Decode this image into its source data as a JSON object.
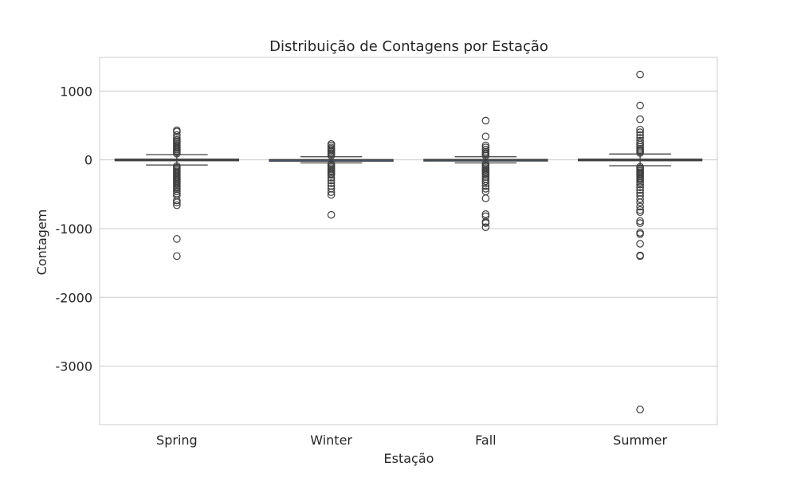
{
  "chart_data": {
    "type": "box",
    "title": "Distribuição de Contagens por Estação",
    "xlabel": "Estação",
    "ylabel": "Contagem",
    "ylim": [
      -3850,
      1490
    ],
    "yticks": [
      1000,
      0,
      -1000,
      -2000,
      -3000
    ],
    "ytick_labels": [
      "1000",
      "0",
      "-1000",
      "-2000",
      "-3000"
    ],
    "grid": "horizontal",
    "colors": {
      "box_fill": "#4c72b0",
      "line": "#3f3f3f",
      "grid": "#cccccc",
      "frame": "#cccccc"
    },
    "categories": [
      "Spring",
      "Winter",
      "Fall",
      "Summer"
    ],
    "boxes": [
      {
        "label": "Spring",
        "q1": -10,
        "median": 0,
        "q3": 10,
        "whisker_low": -75,
        "whisker_high": 75,
        "outliers": [
          430,
          410,
          360,
          320,
          290,
          270,
          250,
          230,
          210,
          190,
          170,
          150,
          130,
          110,
          90,
          -90,
          -110,
          -130,
          -150,
          -170,
          -190,
          -210,
          -230,
          -250,
          -270,
          -290,
          -310,
          -330,
          -350,
          -370,
          -390,
          -410,
          -430,
          -460,
          -490,
          -520,
          -590,
          -620,
          -660,
          -1150,
          -1400
        ]
      },
      {
        "label": "Winter",
        "q1": -4,
        "median": 0,
        "q3": 4,
        "whisker_low": -45,
        "whisker_high": 45,
        "outliers": [
          230,
          210,
          180,
          160,
          140,
          120,
          100,
          80,
          60,
          -60,
          -80,
          -100,
          -120,
          -140,
          -160,
          -180,
          -200,
          -220,
          -260,
          -300,
          -340,
          -380,
          -420,
          -470,
          -510,
          -800
        ]
      },
      {
        "label": "Fall",
        "q1": -6,
        "median": 0,
        "q3": 6,
        "whisker_low": -45,
        "whisker_high": 45,
        "outliers": [
          570,
          340,
          210,
          180,
          150,
          120,
          100,
          80,
          60,
          -60,
          -80,
          -100,
          -120,
          -140,
          -160,
          -180,
          -200,
          -220,
          -250,
          -280,
          -310,
          -340,
          -380,
          -420,
          -460,
          -560,
          -790,
          -820,
          -900,
          -920,
          -980
        ]
      },
      {
        "label": "Summer",
        "q1": -10,
        "median": 0,
        "q3": 10,
        "whisker_low": -85,
        "whisker_high": 85,
        "outliers": [
          1240,
          790,
          590,
          440,
          400,
          360,
          320,
          280,
          250,
          220,
          190,
          160,
          140,
          120,
          100,
          -100,
          -120,
          -140,
          -160,
          -180,
          -200,
          -220,
          -240,
          -260,
          -280,
          -300,
          -330,
          -360,
          -400,
          -440,
          -480,
          -520,
          -570,
          -620,
          -680,
          -730,
          -760,
          -890,
          -920,
          -1060,
          -1080,
          -1220,
          -1390,
          -1400,
          -3630
        ]
      }
    ]
  }
}
